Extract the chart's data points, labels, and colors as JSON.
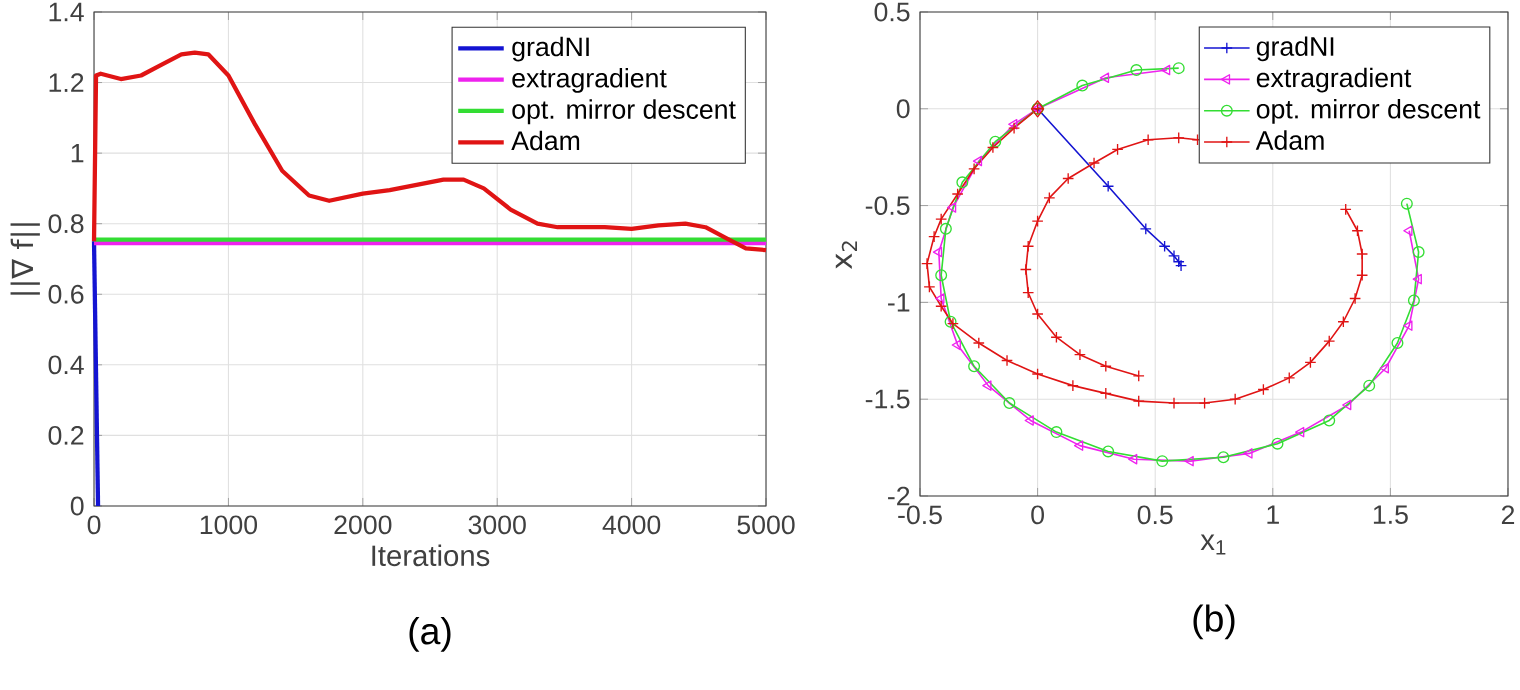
{
  "chart_data": [
    {
      "type": "line",
      "xlabel": "Iterations",
      "ylabel": "||∇ f||",
      "xlim": [
        0,
        5000
      ],
      "ylim": [
        0,
        1.4
      ],
      "xticks": [
        0,
        1000,
        2000,
        3000,
        4000,
        5000
      ],
      "yticks": [
        0,
        0.2,
        0.4,
        0.6,
        0.8,
        1,
        1.2,
        1.4
      ],
      "grid": true,
      "legend": "top right",
      "annotations": [
        "(a)"
      ],
      "series": [
        {
          "name": "gradNI",
          "color": "#1414d2",
          "x": [
            0,
            30
          ],
          "values": [
            0.75,
            0
          ]
        },
        {
          "name": "extragradient",
          "color": "#ee22ee",
          "x": [
            0,
            5000
          ],
          "values": [
            0.745,
            0.745
          ]
        },
        {
          "name": "opt. mirror descent",
          "color": "#33dd33",
          "x": [
            0,
            5000
          ],
          "values": [
            0.755,
            0.755
          ]
        },
        {
          "name": "Adam",
          "color": "#e01414",
          "x": [
            0,
            15,
            50,
            200,
            350,
            500,
            650,
            750,
            850,
            1000,
            1200,
            1400,
            1600,
            1750,
            2000,
            2200,
            2400,
            2600,
            2750,
            2900,
            3100,
            3300,
            3450,
            3600,
            3800,
            4000,
            4200,
            4400,
            4550,
            4700,
            4850,
            5000
          ],
          "values": [
            0.75,
            1.22,
            1.225,
            1.21,
            1.22,
            1.25,
            1.28,
            1.285,
            1.28,
            1.22,
            1.08,
            0.95,
            0.88,
            0.865,
            0.885,
            0.895,
            0.91,
            0.925,
            0.925,
            0.9,
            0.84,
            0.8,
            0.79,
            0.79,
            0.79,
            0.785,
            0.795,
            0.8,
            0.79,
            0.76,
            0.73,
            0.725
          ]
        }
      ]
    },
    {
      "type": "line",
      "xlabel": "x$_{1}$",
      "ylabel": "x$_{2}$",
      "xlim": [
        -0.5,
        2
      ],
      "ylim": [
        -2,
        0.5
      ],
      "xticks": [
        -0.5,
        0,
        0.5,
        1,
        1.5,
        2
      ],
      "yticks": [
        -2,
        -1.5,
        -1,
        -0.5,
        0,
        0.5
      ],
      "grid": true,
      "legend": "top right",
      "annotations": [
        "(b)"
      ],
      "series": [
        {
          "name": "gradNI",
          "color": "#1414d2",
          "marker": "cross",
          "x": [
            0,
            0.3,
            0.46,
            0.54,
            0.58,
            0.6,
            0.61
          ],
          "values": [
            0,
            -0.4,
            -0.62,
            -0.71,
            -0.76,
            -0.79,
            -0.81
          ]
        },
        {
          "name": "extragradient",
          "color": "#ee22ee",
          "marker": "triangle",
          "x": [
            0,
            0.29,
            0.55,
            null,
            1.58,
            1.62,
            1.58,
            1.48,
            1.32,
            1.12,
            0.9,
            0.65,
            0.41,
            0.18,
            -0.03,
            -0.21,
            -0.34,
            -0.41,
            -0.42,
            -0.36,
            -0.25,
            -0.1,
            0
          ],
          "values": [
            0,
            0.16,
            0.2,
            null,
            -0.63,
            -0.88,
            -1.12,
            -1.34,
            -1.53,
            -1.67,
            -1.78,
            -1.82,
            -1.81,
            -1.74,
            -1.61,
            -1.43,
            -1.22,
            -0.98,
            -0.74,
            -0.51,
            -0.27,
            -0.08,
            0
          ]
        },
        {
          "name": "opt. mirror descent",
          "color": "#33dd33",
          "marker": "circle",
          "x": [
            0,
            0.19,
            0.42,
            0.6,
            null,
            1.57,
            1.62,
            1.6,
            1.53,
            1.41,
            1.24,
            1.02,
            0.79,
            0.53,
            0.3,
            0.08,
            -0.12,
            -0.27,
            -0.37,
            -0.41,
            -0.39,
            -0.32,
            -0.18,
            0
          ],
          "values": [
            0,
            0.12,
            0.2,
            0.21,
            null,
            -0.49,
            -0.74,
            -0.99,
            -1.21,
            -1.43,
            -1.61,
            -1.73,
            -1.8,
            -1.82,
            -1.77,
            -1.67,
            -1.52,
            -1.33,
            -1.1,
            -0.86,
            -0.62,
            -0.38,
            -0.17,
            0
          ]
        },
        {
          "name": "Adam",
          "color": "#e01414",
          "marker": "cross",
          "x": [
            0,
            -0.1,
            -0.19,
            -0.27,
            -0.34,
            -0.41,
            -0.44,
            -0.47,
            -0.46,
            -0.41,
            -0.36,
            -0.25,
            -0.13,
            0,
            0.15,
            0.29,
            0.43,
            0.58,
            0.71,
            0.84,
            0.96,
            1.07,
            1.16,
            1.24,
            1.3,
            1.35,
            1.38,
            1.38,
            1.36,
            1.31,
            null,
            0.68,
            0.6,
            0.47,
            0.34,
            0.24,
            0.13,
            0.05,
            0,
            -0.04,
            -0.05,
            -0.04,
            0,
            0.08,
            0.18,
            0.29,
            0.43
          ],
          "values": [
            0,
            -0.1,
            -0.2,
            -0.31,
            -0.44,
            -0.57,
            -0.66,
            -0.8,
            -0.92,
            -1.02,
            -1.11,
            -1.21,
            -1.3,
            -1.37,
            -1.43,
            -1.47,
            -1.51,
            -1.52,
            -1.52,
            -1.5,
            -1.45,
            -1.39,
            -1.31,
            -1.2,
            -1.1,
            -0.98,
            -0.86,
            -0.75,
            -0.63,
            -0.52,
            null,
            -0.16,
            -0.15,
            -0.16,
            -0.21,
            -0.28,
            -0.36,
            -0.46,
            -0.58,
            -0.71,
            -0.83,
            -0.95,
            -1.06,
            -1.18,
            -1.27,
            -1.33,
            -1.38
          ]
        },
        {
          "type": "scatter",
          "color": "#e01414",
          "marker": "diamond",
          "x": [
            0
          ],
          "values": [
            0
          ]
        }
      ]
    }
  ]
}
